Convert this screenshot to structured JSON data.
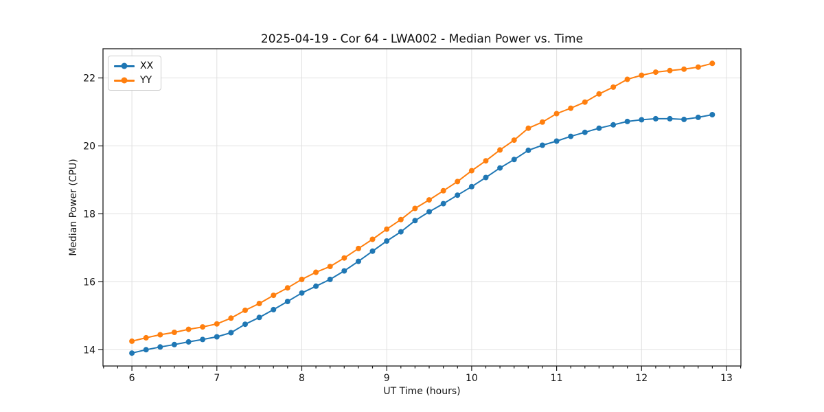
{
  "figure": {
    "background": "#ffffff",
    "text_color": "#111111",
    "grid_color": "#e0e0e0",
    "spine_color": "#1a1a1a"
  },
  "chart_data": {
    "type": "line",
    "title": "2025-04-19 - Cor 64 - LWA002 - Median Power vs. Time",
    "xlabel": "UT Time (hours)",
    "ylabel": "Median Power (CPU)",
    "xlim": [
      5.66,
      13.17
    ],
    "ylim": [
      13.52,
      22.86
    ],
    "x_ticks": [
      6,
      7,
      8,
      9,
      10,
      11,
      12,
      13
    ],
    "y_ticks": [
      14,
      16,
      18,
      20,
      22
    ],
    "x_minor_step": 0.166667,
    "grid": true,
    "legend_position": "upper left",
    "marker": "circle",
    "x": [
      6.0,
      6.167,
      6.333,
      6.5,
      6.667,
      6.833,
      7.0,
      7.167,
      7.333,
      7.5,
      7.667,
      7.833,
      8.0,
      8.167,
      8.333,
      8.5,
      8.667,
      8.833,
      9.0,
      9.167,
      9.333,
      9.5,
      9.667,
      9.833,
      10.0,
      10.167,
      10.333,
      10.5,
      10.667,
      10.833,
      11.0,
      11.167,
      11.333,
      11.5,
      11.667,
      11.833,
      12.0,
      12.167,
      12.333,
      12.5,
      12.667,
      12.833
    ],
    "series": [
      {
        "name": "XX",
        "color": "#1f77b4",
        "values": [
          13.9,
          14.0,
          14.08,
          14.15,
          14.23,
          14.3,
          14.38,
          14.5,
          14.75,
          14.95,
          15.18,
          15.42,
          15.67,
          15.87,
          16.07,
          16.32,
          16.6,
          16.9,
          17.2,
          17.47,
          17.8,
          18.06,
          18.3,
          18.55,
          18.8,
          19.07,
          19.35,
          19.6,
          19.87,
          20.02,
          20.14,
          20.28,
          20.4,
          20.52,
          20.62,
          20.72,
          20.77,
          20.8,
          20.8,
          20.78,
          20.84,
          20.92
        ]
      },
      {
        "name": "YY",
        "color": "#ff7f0e",
        "values": [
          14.25,
          14.35,
          14.44,
          14.51,
          14.6,
          14.67,
          14.76,
          14.93,
          15.16,
          15.36,
          15.6,
          15.82,
          16.07,
          16.28,
          16.45,
          16.7,
          16.98,
          17.25,
          17.55,
          17.83,
          18.16,
          18.41,
          18.68,
          18.95,
          19.27,
          19.56,
          19.88,
          20.17,
          20.52,
          20.7,
          20.95,
          21.11,
          21.29,
          21.53,
          21.73,
          21.96,
          22.08,
          22.17,
          22.22,
          22.26,
          22.32,
          22.43
        ]
      }
    ]
  }
}
